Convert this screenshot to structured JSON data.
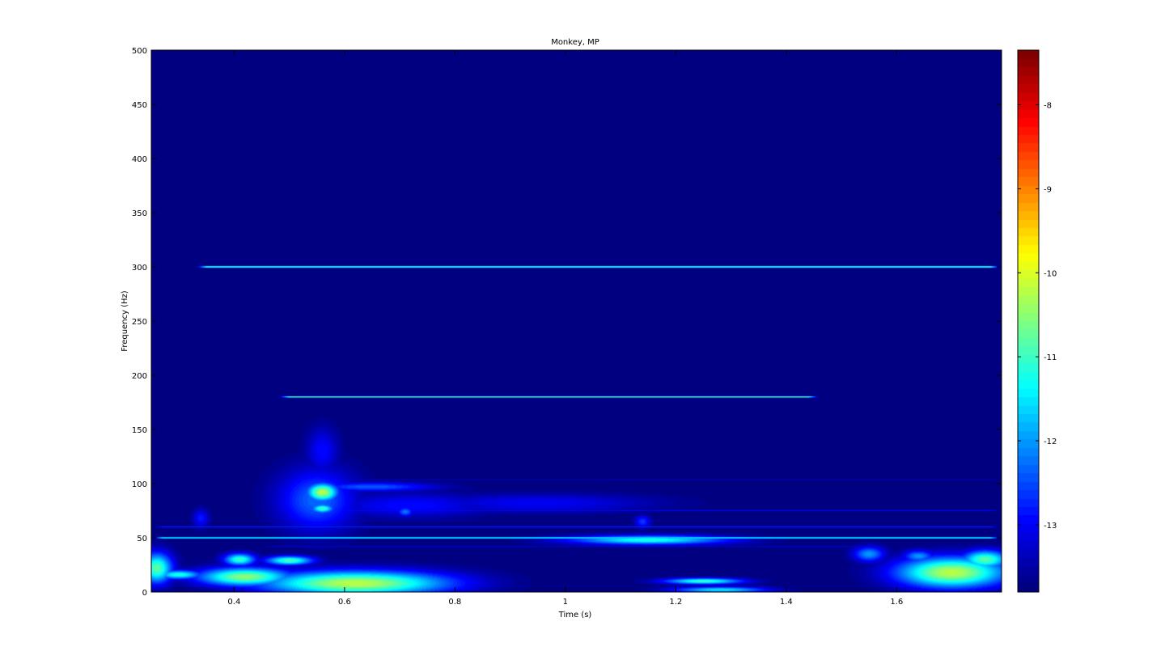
{
  "chart_data": {
    "type": "heatmap",
    "title": "Monkey, MP",
    "xlabel": "Time (s)",
    "ylabel": "Frequency (Hz)",
    "xlim": [
      0.25,
      1.79
    ],
    "ylim": [
      0,
      500
    ],
    "x_ticks": [
      0.4,
      0.6,
      0.8,
      1,
      1.2,
      1.4,
      1.6
    ],
    "x_tick_labels": [
      "0.4",
      "0.6",
      "0.8",
      "1",
      "1.2",
      "1.4",
      "1.6"
    ],
    "y_ticks": [
      0,
      50,
      100,
      150,
      200,
      250,
      300,
      350,
      400,
      450,
      500
    ],
    "y_tick_labels": [
      "0",
      "50",
      "100",
      "150",
      "200",
      "250",
      "300",
      "350",
      "400",
      "450",
      "500"
    ],
    "colorbar": {
      "colormap": "jet",
      "clim": [
        -13.8,
        -7.35
      ],
      "ticks": [
        -8,
        -9,
        -10,
        -11,
        -12,
        -13
      ],
      "tick_labels": [
        "-8",
        "-9",
        "-10",
        "-11",
        "-12",
        "-13"
      ]
    },
    "background_value": -13.8,
    "lines": [
      {
        "freq": 300,
        "t0": 0.33,
        "t1": 1.79,
        "value": -10.3
      },
      {
        "freq": 180,
        "t0": 0.48,
        "t1": 1.46,
        "value": -10.3
      },
      {
        "freq": 50,
        "t0": 0.25,
        "t1": 1.79,
        "value": -10.8
      },
      {
        "freq": 60,
        "t0": 0.25,
        "t1": 1.79,
        "value": -12.7
      },
      {
        "freq": 75,
        "t0": 0.5,
        "t1": 1.79,
        "value": -12.9
      },
      {
        "freq": 104,
        "t0": 0.6,
        "t1": 1.79,
        "value": -13.4
      },
      {
        "freq": 42,
        "t0": 0.45,
        "t1": 1.55,
        "value": -13.2
      }
    ],
    "blobs": [
      {
        "t": 0.56,
        "f": 92,
        "sigma_t": 0.02,
        "sigma_f": 6,
        "value": -10.2
      },
      {
        "t": 0.56,
        "f": 77,
        "sigma_t": 0.015,
        "sigma_f": 3,
        "value": -11.0
      },
      {
        "t": 0.55,
        "f": 85,
        "sigma_t": 0.05,
        "sigma_f": 20,
        "value": -12.3
      },
      {
        "t": 0.56,
        "f": 130,
        "sigma_t": 0.02,
        "sigma_f": 15,
        "value": -12.9
      },
      {
        "t": 0.65,
        "f": 97,
        "sigma_t": 0.08,
        "sigma_f": 3,
        "value": -12.4
      },
      {
        "t": 0.72,
        "f": 80,
        "sigma_t": 0.1,
        "sigma_f": 8,
        "value": -12.9
      },
      {
        "t": 0.95,
        "f": 82,
        "sigma_t": 0.15,
        "sigma_f": 6,
        "value": -13.0
      },
      {
        "t": 1.15,
        "f": 48,
        "sigma_t": 0.1,
        "sigma_f": 3,
        "value": -11.2
      },
      {
        "t": 0.62,
        "f": 8,
        "sigma_t": 0.12,
        "sigma_f": 8,
        "value": -10.2
      },
      {
        "t": 0.42,
        "f": 14,
        "sigma_t": 0.06,
        "sigma_f": 6,
        "value": -10.5
      },
      {
        "t": 0.26,
        "f": 22,
        "sigma_t": 0.02,
        "sigma_f": 10,
        "value": -10.8
      },
      {
        "t": 0.3,
        "f": 16,
        "sigma_t": 0.03,
        "sigma_f": 3,
        "value": -11.2
      },
      {
        "t": 0.41,
        "f": 30,
        "sigma_t": 0.02,
        "sigma_f": 4,
        "value": -11.0
      },
      {
        "t": 0.5,
        "f": 29,
        "sigma_t": 0.03,
        "sigma_f": 3,
        "value": -10.9
      },
      {
        "t": 1.7,
        "f": 18,
        "sigma_t": 0.07,
        "sigma_f": 10,
        "value": -10.2
      },
      {
        "t": 1.76,
        "f": 30,
        "sigma_t": 0.03,
        "sigma_f": 6,
        "value": -10.8
      },
      {
        "t": 1.64,
        "f": 33,
        "sigma_t": 0.02,
        "sigma_f": 4,
        "value": -12.0
      },
      {
        "t": 1.25,
        "f": 10,
        "sigma_t": 0.05,
        "sigma_f": 2,
        "value": -11.0
      },
      {
        "t": 1.28,
        "f": 2,
        "sigma_t": 0.06,
        "sigma_f": 2,
        "value": -11.5
      },
      {
        "t": 1.55,
        "f": 35,
        "sigma_t": 0.02,
        "sigma_f": 5,
        "value": -12.0
      },
      {
        "t": 0.71,
        "f": 74,
        "sigma_t": 0.01,
        "sigma_f": 3,
        "value": -12.2
      },
      {
        "t": 1.14,
        "f": 65,
        "sigma_t": 0.01,
        "sigma_f": 4,
        "value": -12.6
      },
      {
        "t": 0.34,
        "f": 68,
        "sigma_t": 0.01,
        "sigma_f": 6,
        "value": -12.8
      }
    ]
  }
}
